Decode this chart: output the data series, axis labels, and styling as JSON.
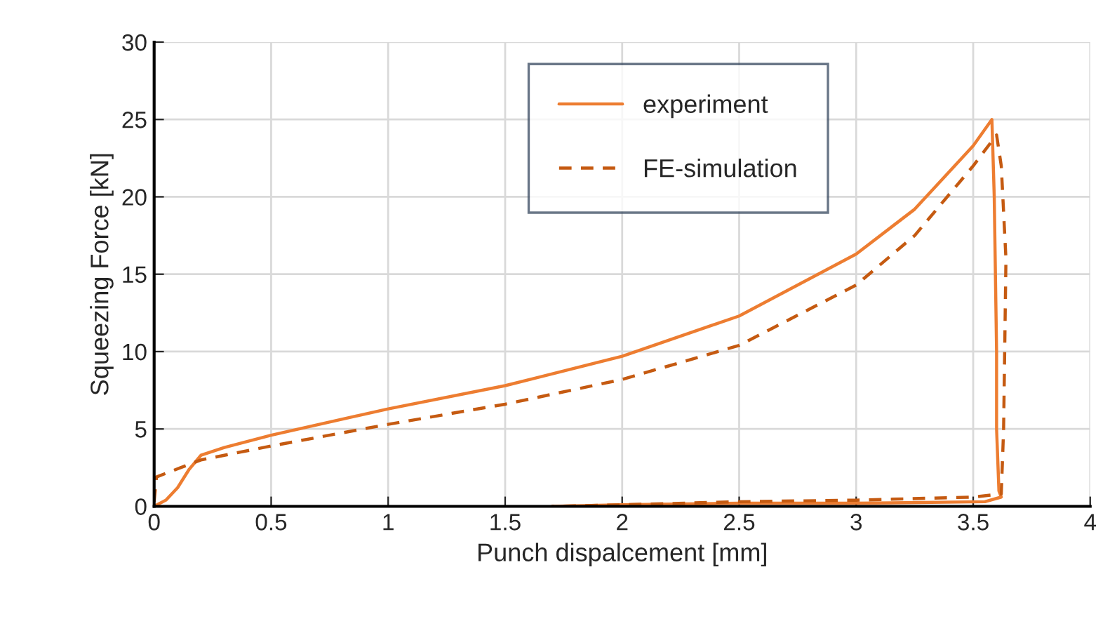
{
  "chart_data": {
    "type": "line",
    "xlabel": "Punch dispalcement [mm]",
    "ylabel": "Squeezing Force [kN]",
    "xlim": [
      0,
      4
    ],
    "xticks": [
      0,
      0.5,
      1,
      1.5,
      2,
      2.5,
      3,
      3.5,
      4
    ],
    "ylim": [
      0,
      30
    ],
    "yticks": [
      0,
      5,
      10,
      15,
      20,
      25,
      30
    ],
    "grid": true,
    "legend": "top",
    "marker": "none",
    "series": [
      {
        "name": "experiment",
        "color": "#ed7d31",
        "line_style": "solid",
        "x": [
          0,
          0.05,
          0.1,
          0.15,
          0.2,
          0.3,
          0.5,
          1,
          1.5,
          2,
          2.5,
          3,
          3.25,
          3.5,
          3.58,
          3.59,
          3.6,
          3.6,
          3.61,
          3.62,
          3.55,
          3,
          2.5,
          2,
          1.7
        ],
        "values": [
          0,
          0.4,
          1.2,
          2.4,
          3.3,
          3.8,
          4.6,
          6.3,
          7.8,
          9.7,
          12.3,
          16.3,
          19.2,
          23.3,
          25,
          20,
          10,
          5,
          1,
          0.6,
          0.3,
          0.2,
          0.2,
          0.1,
          0
        ]
      },
      {
        "name": "FE-simulation",
        "color": "#c55a11",
        "line_style": "dashed",
        "x": [
          0,
          0.01,
          0.2,
          0.5,
          1,
          1.5,
          2,
          2.5,
          3,
          3.25,
          3.5,
          3.6,
          3.62,
          3.64,
          3.63,
          3.62,
          3.5,
          3,
          2.5,
          2,
          1.7
        ],
        "values": [
          0.3,
          1.9,
          3.0,
          3.9,
          5.3,
          6.6,
          8.2,
          10.4,
          14.3,
          17.5,
          22,
          24,
          22,
          16,
          5,
          0.8,
          0.6,
          0.4,
          0.3,
          0.1,
          0
        ]
      }
    ]
  }
}
